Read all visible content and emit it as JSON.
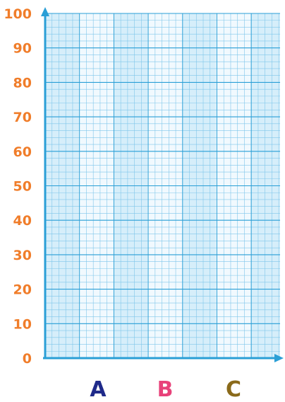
{
  "chart_data": {
    "type": "bar",
    "title": "",
    "xlabel": "",
    "ylabel": "",
    "categories": [
      "A",
      "B",
      "C"
    ],
    "values": [
      null,
      null,
      null
    ],
    "ylim": [
      0,
      100
    ],
    "y_ticks": [
      "0",
      "10",
      "20",
      "30",
      "40",
      "50",
      "60",
      "70",
      "80",
      "90",
      "100"
    ],
    "grid": true,
    "minor_grid_step": 2,
    "legend": "none",
    "colors": {
      "axis": "#2a9fd6",
      "tick_label": "#f07d2a",
      "grid_fine": "#7fc6ea",
      "grid_major": "#2a9fd6",
      "band_dark": "#d6eefa",
      "band_light": "#f1f9fe",
      "category_A": "#1f2a8a",
      "category_B": "#e8427a",
      "category_C": "#8a6a1a"
    }
  }
}
